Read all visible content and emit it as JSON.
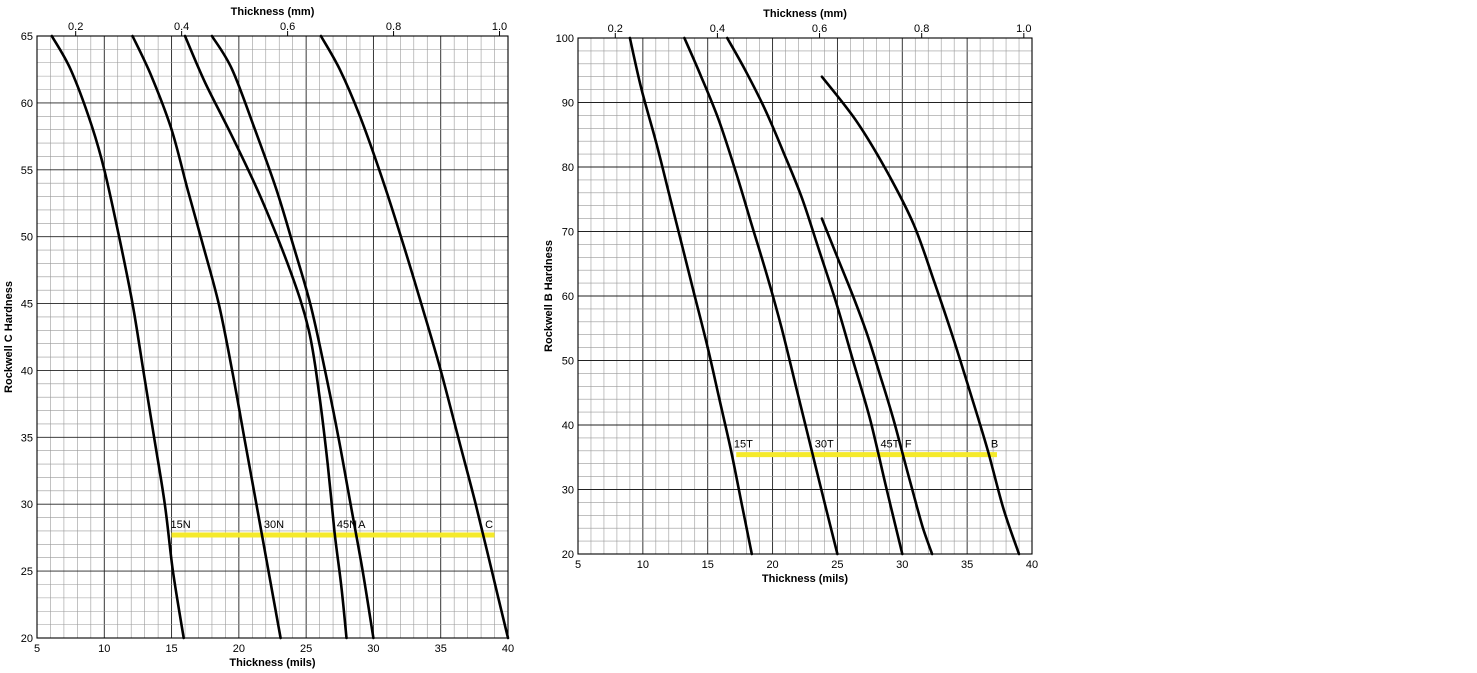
{
  "colors": {
    "highlight": "#f5ea2a",
    "curve": "#000000",
    "grid": "#9a9a9a"
  },
  "chart_data": [
    {
      "type": "line",
      "title": "",
      "xlabel": "Thickness (mils)",
      "ylabel": "Rockwell C Hardness",
      "x2label": "Thickness (mm)",
      "xlim": [
        5,
        40
      ],
      "ylim": [
        20,
        65
      ],
      "xticks": [
        5,
        10,
        15,
        20,
        25,
        30,
        35,
        40
      ],
      "yticks": [
        20,
        25,
        30,
        35,
        40,
        45,
        50,
        55,
        60,
        65
      ],
      "x2ticks": [
        0.2,
        0.4,
        0.6,
        0.8,
        1.0
      ],
      "x2tick_labels": [
        "0.2",
        "0.4",
        "0.6",
        "0.8",
        "1.0"
      ],
      "grid": true,
      "series": [
        {
          "name": "15N",
          "x": [
            6.1,
            7.5,
            9.0,
            10.0,
            11.1,
            12.1,
            12.9,
            13.7,
            14.5,
            15.1,
            15.9
          ],
          "y": [
            65,
            62.5,
            58.5,
            55,
            50,
            45,
            40,
            35,
            30,
            25,
            20
          ]
        },
        {
          "name": "30N",
          "x": [
            12.1,
            13.5,
            15.0,
            16.2,
            17.3,
            18.5,
            19.5,
            20.4,
            21.3,
            22.2,
            23.1
          ],
          "y": [
            65,
            62,
            58,
            53.5,
            49.5,
            45,
            40,
            35,
            30,
            25,
            20
          ]
        },
        {
          "name": "45N",
          "x": [
            16.0,
            17.5,
            19.5,
            21.6,
            23.8,
            25.2,
            26.0,
            26.6,
            27.1,
            27.6,
            28.0
          ],
          "y": [
            65,
            61.5,
            57.5,
            53,
            47.5,
            43,
            38,
            33,
            28,
            24,
            20
          ]
        },
        {
          "name": "A",
          "x": [
            18.0,
            19.5,
            21.2,
            22.8,
            24.0,
            25.3,
            26.4,
            27.4,
            28.3,
            29.2,
            30.0
          ],
          "y": [
            65,
            62.5,
            58,
            53.5,
            49.5,
            45,
            40,
            35,
            30,
            25,
            20
          ]
        },
        {
          "name": "C",
          "x": [
            26.1,
            27.5,
            29.0,
            30.6,
            32.2,
            33.7,
            35.0,
            36.3,
            37.6,
            38.8,
            40.0
          ],
          "y": [
            65,
            62.5,
            59,
            54.5,
            49.5,
            44.5,
            40,
            35,
            30,
            25,
            20
          ]
        }
      ],
      "highlight": {
        "y": 27.7,
        "x_start": 15.0,
        "x_end": 39.0
      }
    },
    {
      "type": "line",
      "title": "",
      "xlabel": "Thickness (mils)",
      "ylabel": "Rockwell B Hardness",
      "x2label": "Thickness (mm)",
      "xlim": [
        5,
        40
      ],
      "ylim": [
        20,
        100
      ],
      "xticks": [
        5,
        10,
        15,
        20,
        25,
        30,
        35,
        40
      ],
      "yticks": [
        20,
        30,
        40,
        50,
        60,
        70,
        80,
        90,
        100
      ],
      "x2ticks": [
        0.2,
        0.4,
        0.6,
        0.8,
        1.0
      ],
      "x2tick_labels": [
        "0.2",
        "0.4",
        "0.6",
        "0.8",
        "1.0"
      ],
      "grid": true,
      "series": [
        {
          "name": "15T",
          "x": [
            9.0,
            9.9,
            11.0,
            12.0,
            13.0,
            14.0,
            15.0,
            15.9,
            16.8,
            17.6,
            18.4
          ],
          "y": [
            100,
            92,
            84,
            76,
            68,
            60,
            52,
            44,
            36,
            28,
            20
          ]
        },
        {
          "name": "30T",
          "x": [
            13.2,
            14.5,
            15.9,
            17.2,
            18.4,
            19.6,
            20.7,
            21.8,
            22.9,
            24.0,
            25.0
          ],
          "y": [
            100,
            94,
            87,
            79,
            71,
            63,
            55,
            46,
            37,
            28,
            20
          ]
        },
        {
          "name": "45T",
          "x": [
            16.5,
            17.9,
            19.4,
            20.9,
            22.3,
            23.6,
            24.9,
            26.2,
            27.5,
            28.8,
            30.0
          ],
          "y": [
            100,
            95,
            89,
            82,
            75,
            67,
            59,
            50,
            41,
            30,
            20
          ]
        },
        {
          "name": "F",
          "x": [
            23.8,
            25.0,
            26.2,
            27.3,
            28.4,
            29.3,
            30.1,
            30.9,
            31.6,
            32.3
          ],
          "y": [
            72,
            66,
            60,
            54,
            47,
            41,
            35,
            29,
            24,
            20
          ]
        },
        {
          "name": "B",
          "x": [
            23.8,
            26.5,
            28.9,
            30.9,
            32.5,
            34.0,
            35.4,
            36.6,
            37.8,
            39.0
          ],
          "y": [
            94,
            87,
            79,
            71,
            62,
            53,
            44,
            36,
            27,
            20
          ]
        }
      ],
      "highlight": {
        "y": 35.4,
        "x_start": 17.2,
        "x_end": 37.3
      }
    }
  ]
}
